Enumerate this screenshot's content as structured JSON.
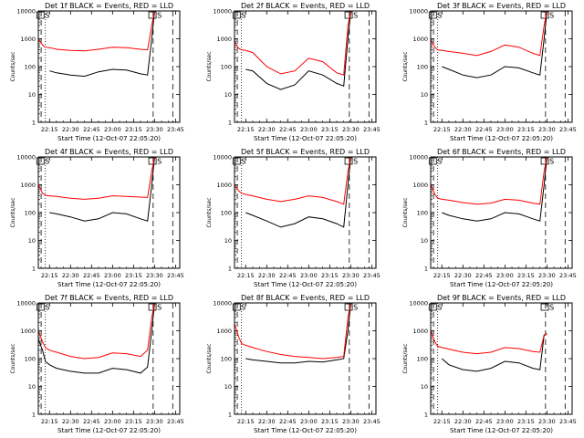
{
  "figure": {
    "xlabel": "Start Time (12-Oct-07 22:05:20)",
    "ylabel": "Counts/sec",
    "y_tick_labels": [
      "1",
      "10",
      "100",
      "1000",
      "10000"
    ],
    "x_tick_labels": [
      "22:15",
      "22:30",
      "22:45",
      "23:00",
      "23:15",
      "23:30",
      "23:45"
    ],
    "marker_labels": [
      "S",
      "S"
    ],
    "colors": {
      "events": "#000000",
      "lld": "#ff0000",
      "background": "#ffffff",
      "axes": "#000000"
    }
  },
  "chart_data": [
    {
      "type": "line",
      "title": "Det 1f BLACK = Events, RED = LLD",
      "yscale": "log",
      "ylim": [
        1,
        10000
      ],
      "x": [
        "22:07",
        "22:10",
        "22:12",
        "22:15",
        "22:20",
        "22:30",
        "22:40",
        "22:50",
        "23:00",
        "23:10",
        "23:20",
        "23:25",
        "23:28",
        "23:30"
      ],
      "series": [
        {
          "name": "Events",
          "values": [
            null,
            null,
            null,
            70,
            60,
            50,
            45,
            65,
            80,
            75,
            55,
            50,
            1000,
            10000
          ]
        },
        {
          "name": "LLD",
          "values": [
            1000,
            600,
            500,
            480,
            420,
            380,
            370,
            420,
            500,
            480,
            420,
            400,
            3000,
            10000
          ]
        }
      ]
    },
    {
      "type": "line",
      "title": "Det 2f BLACK = Events, RED = LLD",
      "yscale": "log",
      "ylim": [
        1,
        10000
      ],
      "x": [
        "22:07",
        "22:10",
        "22:12",
        "22:15",
        "22:20",
        "22:30",
        "22:40",
        "22:50",
        "23:00",
        "23:10",
        "23:20",
        "23:25",
        "23:28",
        "23:30"
      ],
      "series": [
        {
          "name": "Events",
          "values": [
            null,
            null,
            null,
            80,
            70,
            25,
            15,
            22,
            70,
            50,
            25,
            20,
            1000,
            10000
          ]
        },
        {
          "name": "LLD",
          "values": [
            800,
            450,
            400,
            380,
            320,
            100,
            55,
            70,
            200,
            150,
            60,
            50,
            3000,
            10000
          ]
        }
      ]
    },
    {
      "type": "line",
      "title": "Det 3f BLACK = Events, RED = LLD",
      "yscale": "log",
      "ylim": [
        1,
        10000
      ],
      "x": [
        "22:07",
        "22:10",
        "22:12",
        "22:15",
        "22:20",
        "22:30",
        "22:40",
        "22:50",
        "23:00",
        "23:10",
        "23:20",
        "23:25",
        "23:28",
        "23:30"
      ],
      "series": [
        {
          "name": "Events",
          "values": [
            null,
            null,
            null,
            100,
            80,
            50,
            40,
            50,
            100,
            90,
            60,
            50,
            1000,
            10000
          ]
        },
        {
          "name": "LLD",
          "values": [
            900,
            500,
            400,
            380,
            350,
            300,
            250,
            350,
            600,
            500,
            300,
            250,
            3000,
            10000
          ]
        }
      ]
    },
    {
      "type": "line",
      "title": "Det 4f BLACK = Events, RED = LLD",
      "yscale": "log",
      "ylim": [
        1,
        10000
      ],
      "x": [
        "22:07",
        "22:10",
        "22:12",
        "22:15",
        "22:20",
        "22:30",
        "22:40",
        "22:50",
        "23:00",
        "23:10",
        "23:20",
        "23:25",
        "23:28",
        "23:30"
      ],
      "series": [
        {
          "name": "Events",
          "values": [
            null,
            null,
            null,
            100,
            90,
            70,
            50,
            60,
            100,
            90,
            60,
            50,
            1000,
            10000
          ]
        },
        {
          "name": "LLD",
          "values": [
            1000,
            500,
            420,
            400,
            380,
            330,
            300,
            330,
            400,
            380,
            360,
            350,
            3000,
            10000
          ]
        }
      ]
    },
    {
      "type": "line",
      "title": "Det 5f BLACK = Events, RED = LLD",
      "yscale": "log",
      "ylim": [
        1,
        10000
      ],
      "x": [
        "22:07",
        "22:10",
        "22:12",
        "22:15",
        "22:20",
        "22:30",
        "22:40",
        "22:50",
        "23:00",
        "23:10",
        "23:20",
        "23:25",
        "23:28",
        "23:30"
      ],
      "series": [
        {
          "name": "Events",
          "values": [
            null,
            null,
            null,
            100,
            80,
            50,
            30,
            40,
            70,
            60,
            40,
            30,
            1000,
            10000
          ]
        },
        {
          "name": "LLD",
          "values": [
            1000,
            600,
            500,
            450,
            400,
            300,
            250,
            300,
            400,
            350,
            250,
            200,
            3000,
            10000
          ]
        }
      ]
    },
    {
      "type": "line",
      "title": "Det 6f BLACK = Events, RED = LLD",
      "yscale": "log",
      "ylim": [
        1,
        10000
      ],
      "x": [
        "22:07",
        "22:10",
        "22:12",
        "22:15",
        "22:20",
        "22:30",
        "22:40",
        "22:50",
        "23:00",
        "23:10",
        "23:20",
        "23:25",
        "23:28",
        "23:30"
      ],
      "series": [
        {
          "name": "Events",
          "values": [
            null,
            null,
            null,
            100,
            80,
            60,
            50,
            60,
            100,
            90,
            60,
            50,
            1000,
            10000
          ]
        },
        {
          "name": "LLD",
          "values": [
            1000,
            450,
            330,
            300,
            280,
            230,
            200,
            220,
            300,
            280,
            220,
            200,
            3000,
            10000
          ]
        }
      ]
    },
    {
      "type": "line",
      "title": "Det 7f BLACK = Events, RED = LLD",
      "yscale": "log",
      "ylim": [
        1,
        10000
      ],
      "x": [
        "22:07",
        "22:10",
        "22:12",
        "22:15",
        "22:20",
        "22:30",
        "22:40",
        "22:50",
        "23:00",
        "23:10",
        "23:20",
        "23:25",
        "23:28",
        "23:30"
      ],
      "series": [
        {
          "name": "Events",
          "values": [
            500,
            200,
            80,
            60,
            45,
            35,
            30,
            30,
            45,
            40,
            30,
            50,
            1000,
            10000
          ]
        },
        {
          "name": "LLD",
          "values": [
            1000,
            400,
            250,
            200,
            170,
            120,
            100,
            110,
            160,
            150,
            120,
            200,
            3000,
            10000
          ]
        }
      ]
    },
    {
      "type": "line",
      "title": "Det 8f BLACK = Events, RED = LLD",
      "yscale": "log",
      "ylim": [
        1,
        10000
      ],
      "x": [
        "22:07",
        "22:10",
        "22:12",
        "22:15",
        "22:20",
        "22:30",
        "22:40",
        "22:50",
        "23:00",
        "23:10",
        "23:20",
        "23:25",
        "23:28",
        "23:30"
      ],
      "series": [
        {
          "name": "Events",
          "values": [
            null,
            null,
            null,
            100,
            90,
            80,
            70,
            70,
            80,
            75,
            90,
            100,
            1000,
            10000
          ]
        },
        {
          "name": "LLD",
          "values": [
            1800,
            600,
            350,
            300,
            250,
            180,
            140,
            120,
            110,
            100,
            110,
            120,
            3000,
            10000
          ]
        }
      ]
    },
    {
      "type": "line",
      "title": "Det 9f BLACK = Events, RED = LLD",
      "yscale": "log",
      "ylim": [
        1,
        10000
      ],
      "x": [
        "22:07",
        "22:10",
        "22:12",
        "22:15",
        "22:20",
        "22:30",
        "22:40",
        "22:50",
        "23:00",
        "23:10",
        "23:20",
        "23:25",
        "23:28",
        "23:30"
      ],
      "series": [
        {
          "name": "Events",
          "values": [
            null,
            null,
            null,
            100,
            60,
            40,
            35,
            45,
            80,
            70,
            45,
            40,
            700,
            800
          ]
        },
        {
          "name": "LLD",
          "values": [
            1000,
            400,
            280,
            250,
            220,
            170,
            150,
            170,
            250,
            230,
            180,
            170,
            700,
            800
          ]
        }
      ]
    }
  ]
}
